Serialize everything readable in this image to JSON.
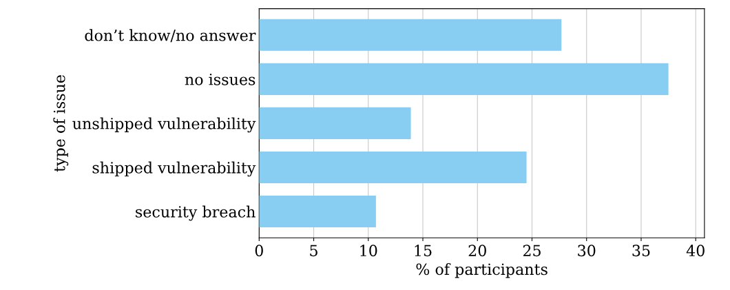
{
  "chart_data": {
    "type": "bar",
    "orientation": "horizontal",
    "xlabel": "% of participants",
    "ylabel": "type of issue",
    "categories": [
      "don’t know/no answer",
      "no issues",
      "unshipped vulnerability",
      "shipped vulnerability",
      "security breach"
    ],
    "values": [
      27.7,
      37.5,
      13.9,
      24.5,
      10.7
    ],
    "color": "#87cef2",
    "xlim": [
      0,
      40.8
    ],
    "xticks": [
      0,
      5,
      10,
      15,
      20,
      25,
      30,
      35,
      40
    ],
    "grid": "x"
  }
}
